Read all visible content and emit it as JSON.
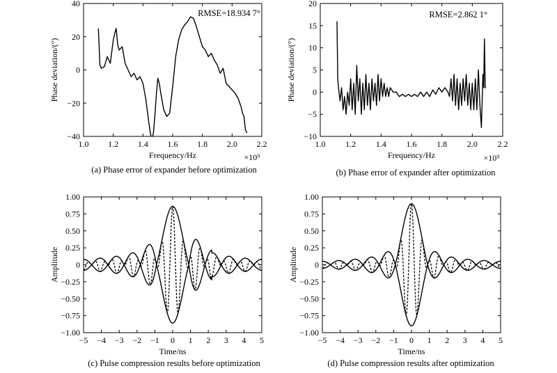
{
  "chart_data": [
    {
      "type": "line",
      "caption": "(a) Phase error of expander before optimization",
      "xlabel": "Frequency/Hz",
      "ylabel": "Phase deviation/(°)",
      "x_multiplier_label": "×10⁹",
      "xlim": [
        1.0,
        2.2
      ],
      "ylim": [
        -40,
        40
      ],
      "xticks": [
        "1.0",
        "1.2",
        "1.4",
        "1.6",
        "1.8",
        "2.0",
        "2.2"
      ],
      "yticks": [
        "40",
        "20",
        "0",
        "−20",
        "−40"
      ],
      "annotation": "RMSE=18.934 7°",
      "series": [
        {
          "style": "solid",
          "x": [
            1.1,
            1.11,
            1.12,
            1.14,
            1.16,
            1.18,
            1.2,
            1.21,
            1.22,
            1.23,
            1.24,
            1.26,
            1.28,
            1.3,
            1.32,
            1.34,
            1.36,
            1.38,
            1.4,
            1.42,
            1.43,
            1.44,
            1.45,
            1.46,
            1.47,
            1.48,
            1.49,
            1.5,
            1.51,
            1.52,
            1.54,
            1.56,
            1.58,
            1.6,
            1.62,
            1.64,
            1.66,
            1.68,
            1.7,
            1.72,
            1.74,
            1.76,
            1.78,
            1.8,
            1.82,
            1.84,
            1.86,
            1.88,
            1.9,
            1.92,
            1.94,
            1.96,
            1.98,
            2.0,
            2.02,
            2.04,
            2.06,
            2.07,
            2.08,
            2.09,
            2.1
          ],
          "y": [
            25,
            3,
            1,
            2,
            8,
            4,
            18,
            22,
            25,
            15,
            12,
            14,
            4,
            0,
            -4,
            -2,
            -6,
            -4,
            -8,
            -18,
            -25,
            -32,
            -38,
            -42,
            -38,
            -28,
            -15,
            -5,
            -8,
            -14,
            -24,
            -28,
            -26,
            -10,
            8,
            18,
            24,
            27,
            29,
            32,
            31,
            26,
            20,
            14,
            12,
            8,
            10,
            6,
            3,
            -2,
            1,
            -8,
            -10,
            -12,
            -14,
            -17,
            -22,
            -26,
            -28,
            -36,
            -38
          ]
        }
      ]
    },
    {
      "type": "line",
      "caption": "(b) Phase error of expander after optimization",
      "xlabel": "Frequency/Hz",
      "ylabel": "Phase deviation/(°)",
      "x_multiplier_label": "×10⁹",
      "xlim": [
        1.0,
        2.2
      ],
      "ylim": [
        -10,
        20
      ],
      "xticks": [
        "1.0",
        "1.2",
        "1.4",
        "1.6",
        "1.8",
        "2.0",
        "2.2"
      ],
      "yticks": [
        "20",
        "15",
        "10",
        "5",
        "0",
        "−5",
        "−10"
      ],
      "annotation": "RMSE=2.862 1°",
      "series": [
        {
          "style": "solid",
          "x": [
            1.11,
            1.115,
            1.12,
            1.13,
            1.14,
            1.15,
            1.16,
            1.17,
            1.18,
            1.19,
            1.2,
            1.21,
            1.22,
            1.23,
            1.24,
            1.25,
            1.26,
            1.27,
            1.28,
            1.29,
            1.3,
            1.31,
            1.32,
            1.33,
            1.34,
            1.35,
            1.36,
            1.37,
            1.38,
            1.39,
            1.4,
            1.41,
            1.42,
            1.43,
            1.44,
            1.45,
            1.46,
            1.48,
            1.5,
            1.52,
            1.54,
            1.56,
            1.58,
            1.6,
            1.62,
            1.64,
            1.66,
            1.68,
            1.7,
            1.72,
            1.74,
            1.76,
            1.78,
            1.8,
            1.82,
            1.84,
            1.85,
            1.86,
            1.87,
            1.88,
            1.89,
            1.9,
            1.91,
            1.92,
            1.93,
            1.94,
            1.95,
            1.96,
            1.97,
            1.98,
            1.99,
            2.0,
            2.01,
            2.02,
            2.03,
            2.04,
            2.05,
            2.06,
            2.07,
            2.075,
            2.08,
            2.085,
            2.09
          ],
          "y": [
            16,
            3,
            1,
            -2,
            1,
            -4,
            -1,
            -5,
            0,
            -3,
            3,
            -4,
            2,
            -5,
            6,
            -2,
            3,
            -5,
            2,
            -4,
            4,
            -3,
            2,
            -4,
            3,
            -2,
            2,
            -3,
            4,
            -2,
            3,
            -1,
            2,
            -1,
            1,
            -1,
            1,
            0,
            0,
            -1,
            -0.5,
            -1,
            -0.5,
            -1,
            -0.5,
            -1,
            0,
            -1,
            0,
            -1,
            0.5,
            -0.5,
            1,
            0,
            1,
            0,
            -1,
            3,
            -2,
            4,
            -3,
            3,
            -4,
            2,
            -3,
            3,
            -2,
            4,
            -3,
            2,
            -4,
            2,
            -4,
            3,
            -4,
            5,
            -3,
            -8,
            4,
            1,
            12,
            1,
            1
          ]
        }
      ]
    },
    {
      "type": "line",
      "caption": "(c) Pulse compression results before optimization",
      "xlabel": "Time/ns",
      "ylabel": "Amplitude",
      "xlim": [
        -5,
        5
      ],
      "ylim": [
        -1,
        1
      ],
      "xticks": [
        "−5",
        "−4",
        "−3",
        "−2",
        "−1",
        "0",
        "1",
        "2",
        "3",
        "4",
        "5"
      ],
      "yticks": [
        "1.00",
        "0.75",
        "0.50",
        "0.25",
        "0",
        "−0.25",
        "−0.50",
        "−0.75",
        "−1.00"
      ],
      "envelope_peak": 0.86,
      "sidelobe_level": 0.35,
      "carrier_frequency_ghz": 1.6,
      "asymmetric": true,
      "series": [
        {
          "style": "solid",
          "role": "upper envelope"
        },
        {
          "style": "solid",
          "role": "lower envelope"
        },
        {
          "style": "dashed",
          "role": "compressed pulse"
        }
      ]
    },
    {
      "type": "line",
      "caption": "(d) Pulse compression results after optimization",
      "xlabel": "Time/ns",
      "ylabel": "Amplitude",
      "xlim": [
        -5,
        5
      ],
      "ylim": [
        -1,
        1
      ],
      "xticks": [
        "−5",
        "−4",
        "−3",
        "−2",
        "−1",
        "0",
        "1",
        "2",
        "3",
        "4",
        "5"
      ],
      "yticks": [
        "1.00",
        "0.75",
        "0.50",
        "0.25",
        "0",
        "−0.25",
        "−0.50",
        "−0.75",
        "−1.00"
      ],
      "envelope_peak": 0.9,
      "sidelobe_level": 0.2,
      "carrier_frequency_ghz": 1.6,
      "asymmetric": false,
      "series": [
        {
          "style": "solid",
          "role": "upper envelope"
        },
        {
          "style": "solid",
          "role": "lower envelope"
        },
        {
          "style": "dashed",
          "role": "compressed pulse"
        }
      ]
    }
  ]
}
